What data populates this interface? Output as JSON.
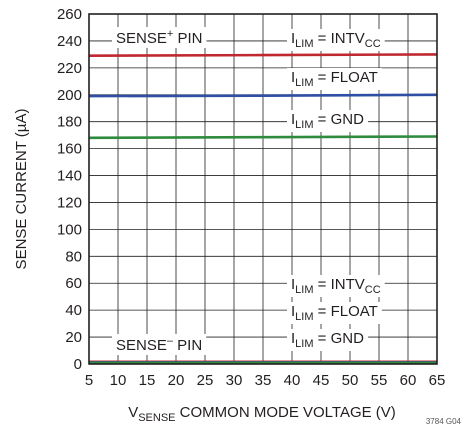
{
  "chart_data": {
    "type": "line",
    "xlabel_main": "V",
    "xlabel_sub": "SENSE",
    "xlabel_rest": " COMMON MODE VOLTAGE (V)",
    "ylabel": "SENSE CURRENT (µA)",
    "xlim": [
      5,
      65
    ],
    "ylim": [
      0,
      260
    ],
    "xticks": [
      5,
      10,
      15,
      20,
      25,
      30,
      35,
      40,
      45,
      50,
      55,
      60,
      65
    ],
    "yticks": [
      0,
      20,
      40,
      60,
      80,
      100,
      120,
      140,
      160,
      180,
      200,
      220,
      240,
      260
    ],
    "grid": true,
    "series": [
      {
        "name": "SENSE+ PIN, ILIM = INTVCC",
        "color": "#c0282f",
        "x": [
          5,
          35,
          65
        ],
        "y": [
          229,
          229.5,
          230
        ]
      },
      {
        "name": "SENSE+ PIN, ILIM = FLOAT",
        "color": "#2e4fa3",
        "x": [
          5,
          35,
          65
        ],
        "y": [
          199,
          199.3,
          200
        ]
      },
      {
        "name": "SENSE+ PIN, ILIM = GND",
        "color": "#2e8b3d",
        "x": [
          5,
          35,
          65
        ],
        "y": [
          168,
          168.5,
          169
        ]
      },
      {
        "name": "SENSE- PIN, ILIM = INTVCC",
        "color": "#c0282f",
        "x": [
          5,
          65
        ],
        "y": [
          1.6,
          1.6
        ]
      },
      {
        "name": "SENSE- PIN, ILIM = FLOAT",
        "color": "#2e4fa3",
        "x": [
          5,
          65
        ],
        "y": [
          1.2,
          1.2
        ]
      },
      {
        "name": "SENSE- PIN, ILIM = GND",
        "color": "#2e8b3d",
        "x": [
          5,
          65
        ],
        "y": [
          0.8,
          0.8
        ]
      }
    ],
    "annotations": {
      "sense_plus": {
        "main": "SENSE",
        "sup": "+",
        "rest": " PIN"
      },
      "sense_minus": {
        "main": "SENSE",
        "sup": "–",
        "rest": " PIN"
      },
      "ilim_intvcc_top": {
        "main": "I",
        "sub": "LIM",
        "eq": " = INTV",
        "sub2": "CC"
      },
      "ilim_float_top": {
        "main": "I",
        "sub": "LIM",
        "eq": " = FLOAT"
      },
      "ilim_gnd_top": {
        "main": "I",
        "sub": "LIM",
        "eq": " = GND"
      },
      "ilim_intvcc_bot": {
        "main": "I",
        "sub": "LIM",
        "eq": " = INTV",
        "sub2": "CC"
      },
      "ilim_float_bot": {
        "main": "I",
        "sub": "LIM",
        "eq": " = FLOAT"
      },
      "ilim_gnd_bot": {
        "main": "I",
        "sub": "LIM",
        "eq": " = GND"
      }
    },
    "figure_code": "3784 G04"
  }
}
